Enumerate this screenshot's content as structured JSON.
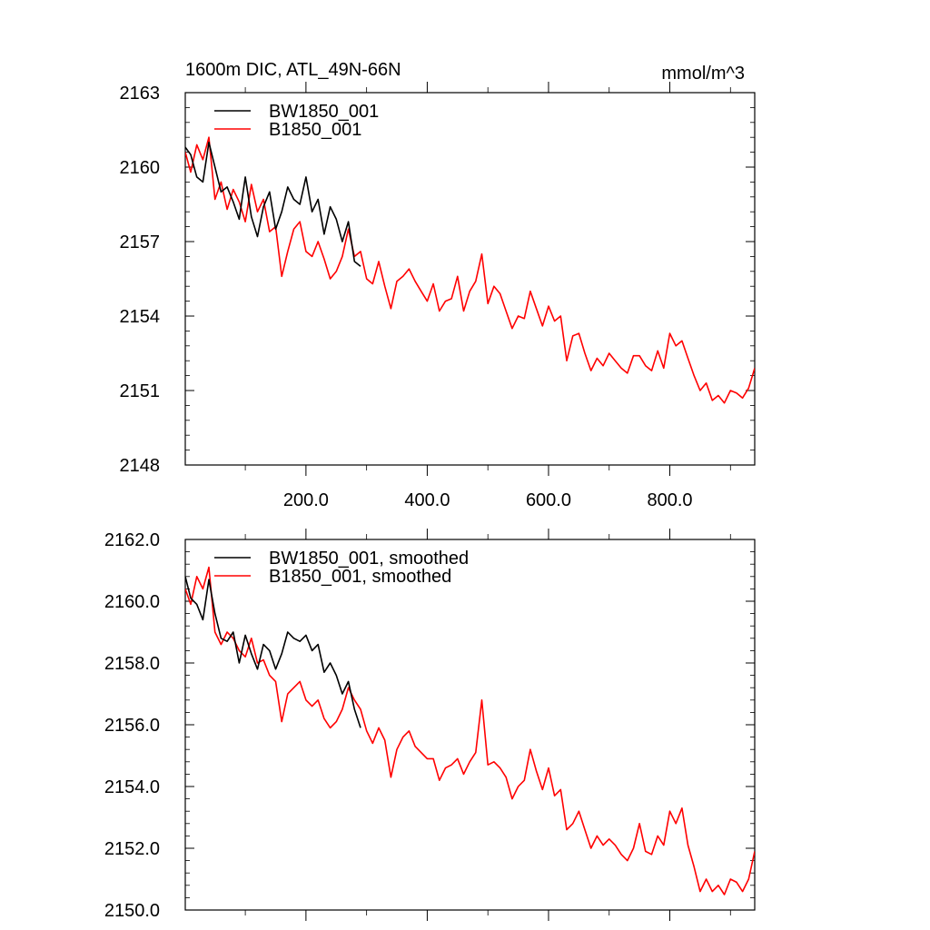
{
  "chart_data": [
    {
      "type": "line",
      "title": "1600m DIC, ATL_49N-66N",
      "units": "mmol/m^3",
      "xlabel": "",
      "ylabel": "",
      "xlim": [
        1,
        940
      ],
      "ylim": [
        2148,
        2163
      ],
      "xticks": [
        200,
        400,
        600,
        800
      ],
      "xtick_labels": [
        "200.0",
        "400.0",
        "600.0",
        "800.0"
      ],
      "yticks": [
        2148,
        2151,
        2154,
        2157,
        2160,
        2163
      ],
      "ytick_labels": [
        "2148",
        "2151",
        "2154",
        "2157",
        "2160",
        "2163"
      ],
      "legend_position": "top-left",
      "series": [
        {
          "name": "BW1850_001",
          "color": "#000000",
          "x": [
            1,
            10,
            20,
            30,
            40,
            50,
            60,
            70,
            80,
            90,
            100,
            110,
            120,
            130,
            140,
            150,
            160,
            170,
            180,
            190,
            200,
            210,
            220,
            230,
            240,
            250,
            260,
            270,
            280,
            290
          ],
          "values": [
            2160.8,
            2160.5,
            2159.6,
            2159.4,
            2161.0,
            2160.0,
            2159.0,
            2159.2,
            2158.6,
            2157.9,
            2159.6,
            2158.0,
            2157.2,
            2158.4,
            2159.0,
            2157.5,
            2158.2,
            2159.2,
            2158.7,
            2158.5,
            2159.6,
            2158.2,
            2158.7,
            2157.3,
            2158.4,
            2157.9,
            2157.0,
            2157.8,
            2156.2,
            2156.0
          ]
        },
        {
          "name": "B1850_001",
          "color": "#ff0000",
          "x": [
            1,
            10,
            20,
            30,
            40,
            50,
            60,
            70,
            80,
            90,
            100,
            110,
            120,
            130,
            140,
            150,
            160,
            170,
            180,
            190,
            200,
            210,
            220,
            230,
            240,
            250,
            260,
            270,
            280,
            290,
            300,
            310,
            320,
            330,
            340,
            350,
            360,
            370,
            380,
            390,
            400,
            410,
            420,
            430,
            440,
            450,
            460,
            470,
            480,
            490,
            500,
            510,
            520,
            530,
            540,
            550,
            560,
            570,
            580,
            590,
            600,
            610,
            620,
            630,
            640,
            650,
            660,
            670,
            680,
            690,
            700,
            710,
            720,
            730,
            740,
            750,
            760,
            770,
            780,
            790,
            800,
            810,
            820,
            830,
            840,
            850,
            860,
            870,
            880,
            890,
            900,
            910,
            920,
            930,
            940
          ],
          "values": [
            2160.6,
            2159.8,
            2160.9,
            2160.3,
            2161.2,
            2158.7,
            2159.4,
            2158.3,
            2159.1,
            2158.6,
            2157.8,
            2159.3,
            2158.2,
            2158.7,
            2157.4,
            2157.6,
            2155.6,
            2156.6,
            2157.5,
            2157.8,
            2156.6,
            2156.4,
            2157.0,
            2156.3,
            2155.5,
            2155.8,
            2156.4,
            2157.5,
            2156.4,
            2156.6,
            2155.5,
            2155.3,
            2156.2,
            2155.2,
            2154.3,
            2155.4,
            2155.6,
            2155.9,
            2155.4,
            2155.0,
            2154.6,
            2155.3,
            2154.2,
            2154.6,
            2154.7,
            2155.6,
            2154.2,
            2155.0,
            2155.4,
            2156.5,
            2154.5,
            2155.2,
            2154.9,
            2154.2,
            2153.5,
            2154.0,
            2153.9,
            2155.0,
            2154.3,
            2153.6,
            2154.4,
            2153.8,
            2154.0,
            2152.2,
            2153.2,
            2153.3,
            2152.5,
            2151.8,
            2152.3,
            2152.0,
            2152.5,
            2152.2,
            2151.9,
            2151.7,
            2152.4,
            2152.4,
            2152.0,
            2151.8,
            2152.6,
            2151.9,
            2153.3,
            2152.8,
            2153.0,
            2152.3,
            2151.6,
            2151.0,
            2151.3,
            2150.6,
            2150.8,
            2150.5,
            2151.0,
            2150.9,
            2150.7,
            2151.1,
            2151.9
          ]
        }
      ]
    },
    {
      "type": "line",
      "title": "",
      "xlabel": "",
      "ylabel": "",
      "xlim": [
        1,
        940
      ],
      "ylim": [
        2150,
        2162
      ],
      "xticks": [
        200,
        400,
        600,
        800
      ],
      "yticks": [
        2150,
        2152,
        2154,
        2156,
        2158,
        2160,
        2162
      ],
      "ytick_labels": [
        "2150.0",
        "2152.0",
        "2154.0",
        "2156.0",
        "2158.0",
        "2160.0",
        "2162.0"
      ],
      "legend_position": "top-left",
      "series": [
        {
          "name": "BW1850_001, smoothed",
          "color": "#000000",
          "x": [
            1,
            10,
            20,
            30,
            40,
            50,
            60,
            70,
            80,
            90,
            100,
            110,
            120,
            130,
            140,
            150,
            160,
            170,
            180,
            190,
            200,
            210,
            220,
            230,
            240,
            250,
            260,
            270,
            280,
            290
          ],
          "values": [
            2160.8,
            2160.1,
            2159.9,
            2159.4,
            2160.7,
            2159.6,
            2158.8,
            2158.7,
            2159.0,
            2158.0,
            2158.9,
            2158.3,
            2157.8,
            2158.6,
            2158.4,
            2157.8,
            2158.3,
            2159.0,
            2158.8,
            2158.7,
            2158.9,
            2158.4,
            2158.6,
            2157.7,
            2158.0,
            2157.6,
            2157.0,
            2157.4,
            2156.5,
            2155.9
          ]
        },
        {
          "name": "B1850_001, smoothed",
          "color": "#ff0000",
          "x": [
            1,
            10,
            20,
            30,
            40,
            50,
            60,
            70,
            80,
            90,
            100,
            110,
            120,
            130,
            140,
            150,
            160,
            170,
            180,
            190,
            200,
            210,
            220,
            230,
            240,
            250,
            260,
            270,
            280,
            290,
            300,
            310,
            320,
            330,
            340,
            350,
            360,
            370,
            380,
            390,
            400,
            410,
            420,
            430,
            440,
            450,
            460,
            470,
            480,
            490,
            500,
            510,
            520,
            530,
            540,
            550,
            560,
            570,
            580,
            590,
            600,
            610,
            620,
            630,
            640,
            650,
            660,
            670,
            680,
            690,
            700,
            710,
            720,
            730,
            740,
            750,
            760,
            770,
            780,
            790,
            800,
            810,
            820,
            830,
            840,
            850,
            860,
            870,
            880,
            890,
            900,
            910,
            920,
            930,
            940
          ],
          "values": [
            2160.4,
            2159.9,
            2160.8,
            2160.4,
            2161.1,
            2159.0,
            2158.6,
            2159.0,
            2158.8,
            2158.4,
            2158.2,
            2158.8,
            2158.0,
            2158.1,
            2157.6,
            2157.4,
            2156.1,
            2157.0,
            2157.2,
            2157.4,
            2156.8,
            2156.6,
            2156.8,
            2156.2,
            2155.9,
            2156.1,
            2156.5,
            2157.2,
            2156.8,
            2156.5,
            2155.8,
            2155.4,
            2155.9,
            2155.5,
            2154.3,
            2155.2,
            2155.6,
            2155.8,
            2155.3,
            2155.1,
            2154.9,
            2154.9,
            2154.2,
            2154.6,
            2154.7,
            2154.9,
            2154.4,
            2154.8,
            2155.1,
            2156.8,
            2154.7,
            2154.8,
            2154.6,
            2154.3,
            2153.6,
            2154.0,
            2154.2,
            2155.2,
            2154.5,
            2153.9,
            2154.6,
            2153.7,
            2153.9,
            2152.6,
            2152.8,
            2153.2,
            2152.6,
            2152.0,
            2152.4,
            2152.1,
            2152.3,
            2152.1,
            2151.8,
            2151.6,
            2152.0,
            2152.8,
            2151.9,
            2151.8,
            2152.4,
            2152.1,
            2153.2,
            2152.8,
            2153.3,
            2152.1,
            2151.4,
            2150.6,
            2151.0,
            2150.6,
            2150.8,
            2150.5,
            2151.0,
            2150.9,
            2150.6,
            2151.0,
            2151.9
          ]
        }
      ]
    }
  ]
}
